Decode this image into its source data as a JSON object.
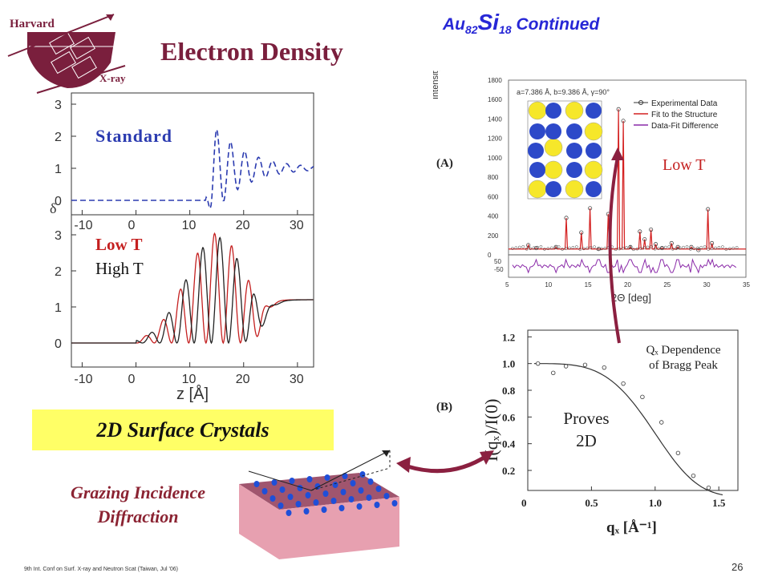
{
  "logo": {
    "top": "Harvard",
    "bottom": "X-ray"
  },
  "title": "Electron Density",
  "subtitle": {
    "prefix": "Au",
    "au_sub": "82",
    "si": "Si",
    "si_sub": "18",
    "suffix": "Continued"
  },
  "left_panel": {
    "labels": {
      "standard": "Standard",
      "low_t": "Low T",
      "high_t": "High T",
      "ylabel": "δ",
      "xlabel": "z [Å]"
    },
    "yticks": [
      "0",
      "1",
      "2",
      "3"
    ],
    "xticks": [
      "-10",
      "0",
      "10",
      "20",
      "30"
    ]
  },
  "banner": "2D Surface Crystals",
  "gid_label": [
    "Grazing Incidence",
    "Diffraction"
  ],
  "panel_a": {
    "tag": "(A)",
    "annotation": "a=7.386 Å, b=9.386 Å, γ=90°",
    "legend": [
      "Experimental Data",
      "Fit to the Structure",
      "Data-Fit Difference"
    ],
    "ylabel": "Intensity (a.u.)",
    "xlabel": "2Θ [deg]",
    "yticks": [
      "0",
      "200",
      "400",
      "600",
      "800",
      "1000",
      "1200",
      "1400",
      "1600",
      "1800"
    ],
    "xticks": [
      "5",
      "10",
      "15",
      "20",
      "25",
      "30",
      "35"
    ],
    "diff_ticks": [
      "50",
      "-50"
    ],
    "low_t": "Low T"
  },
  "panel_b": {
    "tag": "(B)",
    "ylabel": "I(qₓ)/I(0)",
    "xlabel": "qₓ [Å⁻¹]",
    "yticks": [
      "0.2",
      "0.4",
      "0.6",
      "0.8",
      "1.0",
      "1.2"
    ],
    "xticks": [
      "0",
      "0.5",
      "1.0",
      "1.5"
    ],
    "proves": [
      "Proves",
      "2D"
    ],
    "qz_dependence": [
      "Qₓ Dependence",
      "of Bragg Peak"
    ],
    "points": [
      {
        "x": 0.08,
        "y": 1.0
      },
      {
        "x": 0.2,
        "y": 0.93
      },
      {
        "x": 0.3,
        "y": 0.98
      },
      {
        "x": 0.45,
        "y": 0.99
      },
      {
        "x": 0.6,
        "y": 0.97
      },
      {
        "x": 0.75,
        "y": 0.85
      },
      {
        "x": 0.9,
        "y": 0.75
      },
      {
        "x": 1.05,
        "y": 0.56
      },
      {
        "x": 1.18,
        "y": 0.33
      },
      {
        "x": 1.3,
        "y": 0.16
      },
      {
        "x": 1.42,
        "y": 0.07
      }
    ]
  },
  "footer": "9th Int. Conf on Surf. X-ray and Neutron Scat (Taiwan, Jul '06)",
  "page_number": "26",
  "colors": {
    "title": "#7a1f3d",
    "subtitle": "#2727d6",
    "banner": "#ffff66",
    "arrow": "#8b2040",
    "lowT": "#c42020",
    "standard": "#2b3bb0"
  }
}
